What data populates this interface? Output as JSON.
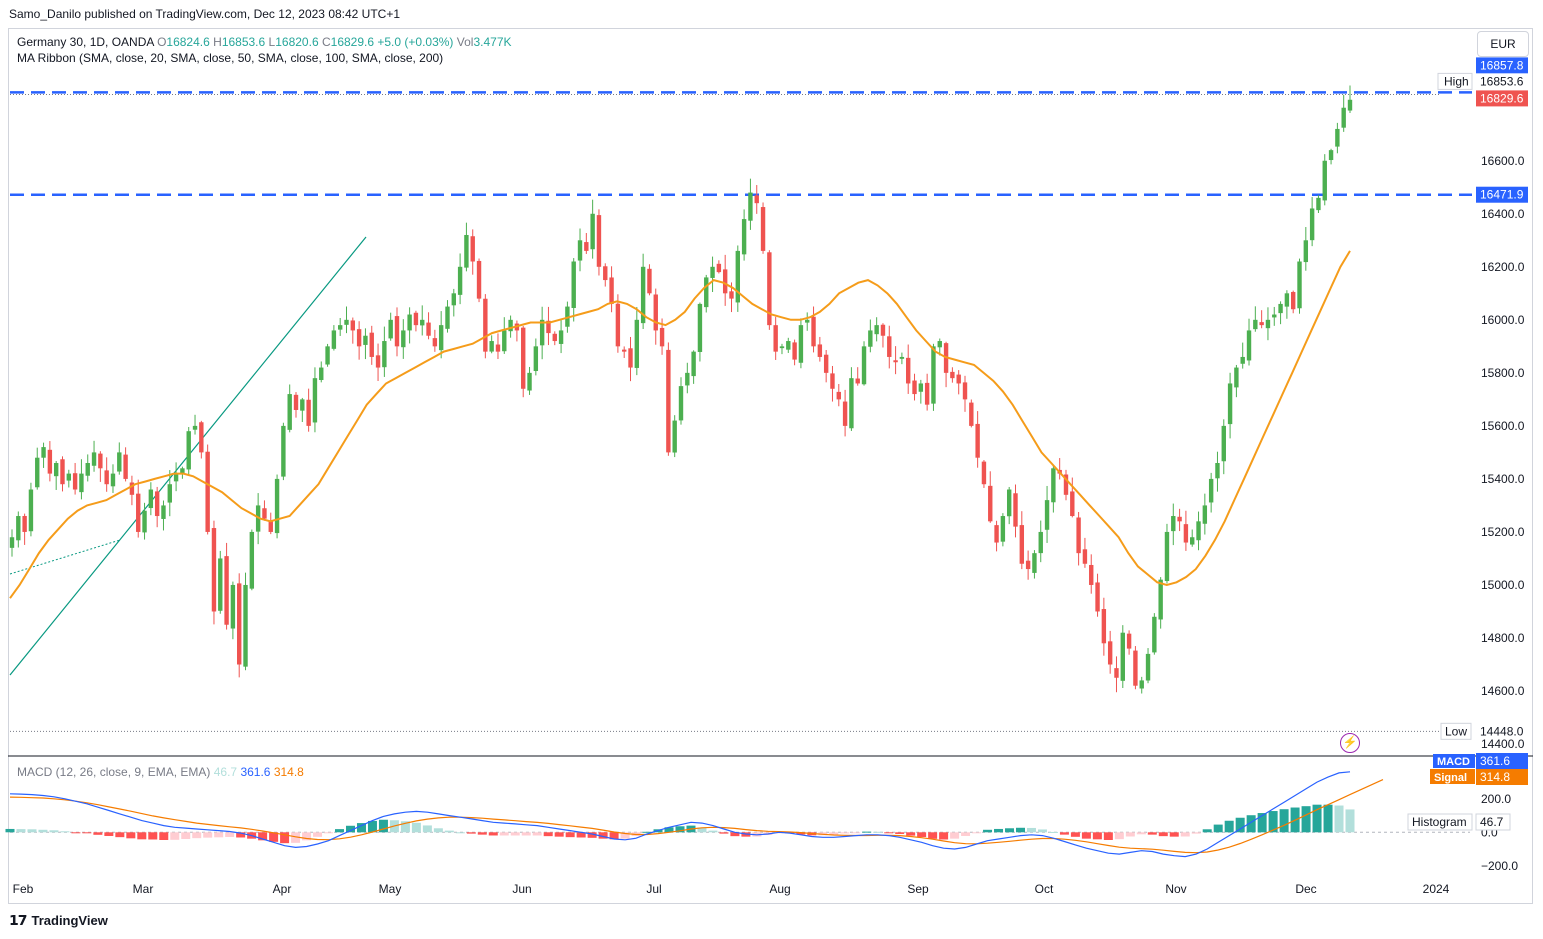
{
  "header": {
    "published": "Samo_Danilo published on TradingView.com, Dec 12, 2023 08:42 UTC+1"
  },
  "legend": {
    "symbol": "Germany 30, 1D, OANDA",
    "open_label": "O",
    "open": "16824.6",
    "high_label": "H",
    "high": "16853.6",
    "low_label": "L",
    "low": "16820.6",
    "close_label": "C",
    "close": "16829.6",
    "change": "+5.0 (+0.03%)",
    "vol_label": "Vol",
    "vol": "3.477K",
    "ma_ribbon": "MA Ribbon (SMA, close, 20, SMA, close, 50, SMA, close, 100, SMA, close, 200)"
  },
  "macd_legend": {
    "title": "MACD (12, 26, close, 9, EMA, EMA)",
    "hist": "46.7",
    "macd": "361.6",
    "signal": "314.8"
  },
  "currency": "EUR",
  "footer": {
    "brand": "TradingView"
  },
  "colors": {
    "up": "#26a69a",
    "up_candle": "#4caf50",
    "down": "#ef5350",
    "ma": "#f59c1a",
    "ma2": "#f57c00",
    "level": "#2962ff",
    "macd": "#2962ff",
    "signal": "#f57c00",
    "hist_up_strong": "#26a69a",
    "hist_up_weak": "#b2dfdb",
    "hist_down_strong": "#ff5252",
    "hist_down_weak": "#ffcdd2"
  },
  "chart_data": {
    "type": "candlestick",
    "price_axis": {
      "ticks": [
        14400,
        14600,
        14800,
        15000,
        15200,
        15400,
        15600,
        15800,
        16000,
        16200,
        16400,
        16600
      ],
      "tick_labels": [
        "14400.0",
        "14600.0",
        "14800.0",
        "15000.0",
        "15200.0",
        "15400.0",
        "15600.0",
        "15800.0",
        "16000.0",
        "16200.0",
        "16400.0",
        "16600.0"
      ],
      "range": [
        14370,
        16980
      ]
    },
    "time_axis": {
      "labels": [
        "Feb",
        "Mar",
        "Apr",
        "May",
        "Jun",
        "Jul",
        "Aug",
        "Sep",
        "Oct",
        "Nov",
        "Dec",
        "2024"
      ]
    },
    "badges": {
      "level_top": "16857.8",
      "high_label": "High",
      "high": "16853.6",
      "last": "16829.6",
      "level_mid": "16471.9",
      "low_label": "Low",
      "low": "14448.0"
    },
    "resistance_levels": [
      16857.8,
      16471.9
    ],
    "high": 16853.6,
    "low": 14448.0,
    "ohlc_close_path": [
      15180,
      15260,
      15200,
      15360,
      15480,
      15520,
      15420,
      15460,
      15380,
      15420,
      15360,
      15420,
      15460,
      15500,
      15440,
      15380,
      15420,
      15500,
      15400,
      15340,
      15200,
      15280,
      15360,
      15260,
      15300,
      15380,
      15420,
      15440,
      15580,
      15600,
      15500,
      15200,
      14900,
      15100,
      14850,
      15000,
      14700,
      15000,
      15200,
      15300,
      15250,
      15200,
      15400,
      15600,
      15720,
      15660,
      15700,
      15600,
      15780,
      15820,
      15900,
      15960,
      15980,
      16000,
      15960,
      15900,
      15940,
      15860,
      15820,
      15920,
      16000,
      15900,
      15960,
      16020,
      15980,
      16000,
      15940,
      15900,
      15980,
      16050,
      16100,
      16200,
      16320,
      16220,
      16080,
      15880,
      15920,
      15880,
      15960,
      16000,
      15960,
      15740,
      15800,
      15900,
      16000,
      15950,
      15920,
      15960,
      16050,
      16220,
      16300,
      16260,
      16400,
      16200,
      16150,
      16060,
      15900,
      15880,
      15820,
      16000,
      16200,
      16100,
      15960,
      15900,
      15500,
      15620,
      15750,
      15800,
      15880,
      16060,
      16160,
      16200,
      16180,
      16100,
      16080,
      16260,
      16380,
      16480,
      16440,
      16260,
      15980,
      15880,
      15900,
      15920,
      15850,
      15980,
      16000,
      15900,
      15860,
      15800,
      15740,
      15700,
      15600,
      15780,
      15760,
      15900,
      15960,
      15980,
      15940,
      15860,
      15840,
      15860,
      15760,
      15720,
      15760,
      15680,
      15900,
      15920,
      15800,
      15780,
      15760,
      15700,
      15600,
      15480,
      15380,
      15240,
      15160,
      15260,
      15360,
      15220,
      15080,
      15060,
      15120,
      15200,
      15320,
      15440,
      15420,
      15340,
      15260,
      15120,
      15080,
      15000,
      14900,
      14780,
      14700,
      14650,
      14820,
      14760,
      14620,
      14640,
      14740,
      14880,
      15020,
      15200,
      15260,
      15240,
      15160,
      15180,
      15240,
      15300,
      15400,
      15460,
      15600,
      15760,
      15820,
      15860,
      15960,
      16000,
      15980,
      16000,
      16020,
      16060,
      16100,
      16040,
      16220,
      16300,
      16420,
      16460,
      16600,
      16640,
      16720,
      16800,
      16830
    ],
    "ma_path": [
      14950,
      15000,
      15060,
      15120,
      15170,
      15210,
      15250,
      15280,
      15300,
      15310,
      15320,
      15340,
      15360,
      15380,
      15390,
      15400,
      15410,
      15420,
      15420,
      15410,
      15390,
      15370,
      15350,
      15320,
      15290,
      15270,
      15250,
      15240,
      15250,
      15260,
      15300,
      15340,
      15380,
      15440,
      15500,
      15560,
      15620,
      15680,
      15720,
      15760,
      15780,
      15800,
      15820,
      15840,
      15860,
      15880,
      15890,
      15900,
      15910,
      15930,
      15950,
      15960,
      15970,
      15980,
      15990,
      15990,
      15990,
      16000,
      16010,
      16020,
      16030,
      16040,
      16060,
      16070,
      16060,
      16040,
      16010,
      15990,
      15980,
      16000,
      16030,
      16080,
      16120,
      16150,
      16140,
      16120,
      16090,
      16060,
      16040,
      16020,
      16010,
      16000,
      16000,
      16010,
      16030,
      16060,
      16100,
      16120,
      16140,
      16150,
      16130,
      16100,
      16060,
      16010,
      15960,
      15920,
      15880,
      15860,
      15850,
      15840,
      15830,
      15800,
      15770,
      15730,
      15680,
      15620,
      15560,
      15500,
      15460,
      15420,
      15380,
      15340,
      15300,
      15260,
      15220,
      15180,
      15120,
      15070,
      15040,
      15010,
      15000,
      15010,
      15030,
      15060,
      15110,
      15170,
      15240,
      15320,
      15400,
      15480,
      15560,
      15640,
      15720,
      15800,
      15880,
      15960,
      16040,
      16120,
      16200,
      16260
    ],
    "macd_axis": {
      "ticks": [
        200,
        0,
        -200
      ],
      "tick_labels": [
        "200.0",
        "0.0",
        "−200.0"
      ],
      "range": [
        -285,
        420
      ]
    },
    "macd_badges": {
      "macd_label": "MACD",
      "macd": "361.6",
      "signal_label": "Signal",
      "signal": "314.8",
      "hist_label": "Histogram",
      "hist": "46.7"
    },
    "macd_series": [
      230,
      228,
      225,
      220,
      212,
      200,
      185,
      170,
      150,
      130,
      110,
      90,
      70,
      55,
      40,
      30,
      25,
      20,
      15,
      10,
      5,
      -5,
      -20,
      -40,
      -60,
      -80,
      -90,
      -85,
      -70,
      -50,
      -20,
      10,
      40,
      70,
      95,
      110,
      120,
      125,
      120,
      110,
      100,
      90,
      80,
      70,
      60,
      55,
      50,
      45,
      40,
      30,
      20,
      10,
      0,
      -10,
      -25,
      -40,
      -45,
      -35,
      -10,
      10,
      30,
      45,
      60,
      55,
      40,
      20,
      0,
      -10,
      -15,
      -10,
      0,
      -5,
      -15,
      -25,
      -30,
      -30,
      -25,
      -20,
      -15,
      -15,
      -20,
      -30,
      -45,
      -60,
      -80,
      -95,
      -100,
      -90,
      -70,
      -50,
      -40,
      -30,
      -20,
      -15,
      -20,
      -35,
      -55,
      -75,
      -95,
      -110,
      -125,
      -130,
      -120,
      -110,
      -115,
      -130,
      -140,
      -145,
      -130,
      -100,
      -60,
      -20,
      20,
      60,
      100,
      140,
      180,
      220,
      260,
      300,
      330,
      355,
      361.6
    ],
    "signal_series": [
      210,
      209,
      207,
      205,
      200,
      194,
      186,
      176,
      165,
      152,
      139,
      126,
      112,
      98,
      86,
      75,
      65,
      55,
      47,
      40,
      33,
      26,
      18,
      8,
      -3,
      -15,
      -27,
      -37,
      -43,
      -44,
      -39,
      -29,
      -15,
      2,
      20,
      38,
      54,
      68,
      79,
      86,
      90,
      90,
      88,
      84,
      79,
      74,
      69,
      64,
      59,
      53,
      46,
      39,
      31,
      23,
      13,
      2,
      -7,
      -13,
      -13,
      -8,
      0,
      9,
      20,
      27,
      30,
      28,
      23,
      16,
      10,
      6,
      4,
      2,
      -2,
      -7,
      -12,
      -16,
      -18,
      -19,
      -19,
      -18,
      -18,
      -20,
      -25,
      -32,
      -41,
      -52,
      -62,
      -68,
      -69,
      -65,
      -60,
      -54,
      -47,
      -41,
      -37,
      -37,
      -41,
      -48,
      -57,
      -68,
      -79,
      -89,
      -95,
      -98,
      -101,
      -107,
      -114,
      -120,
      -122,
      -118,
      -106,
      -89,
      -67,
      -42,
      -15,
      13,
      42,
      72,
      104,
      135,
      165,
      195,
      225,
      255,
      285,
      314.8
    ]
  }
}
